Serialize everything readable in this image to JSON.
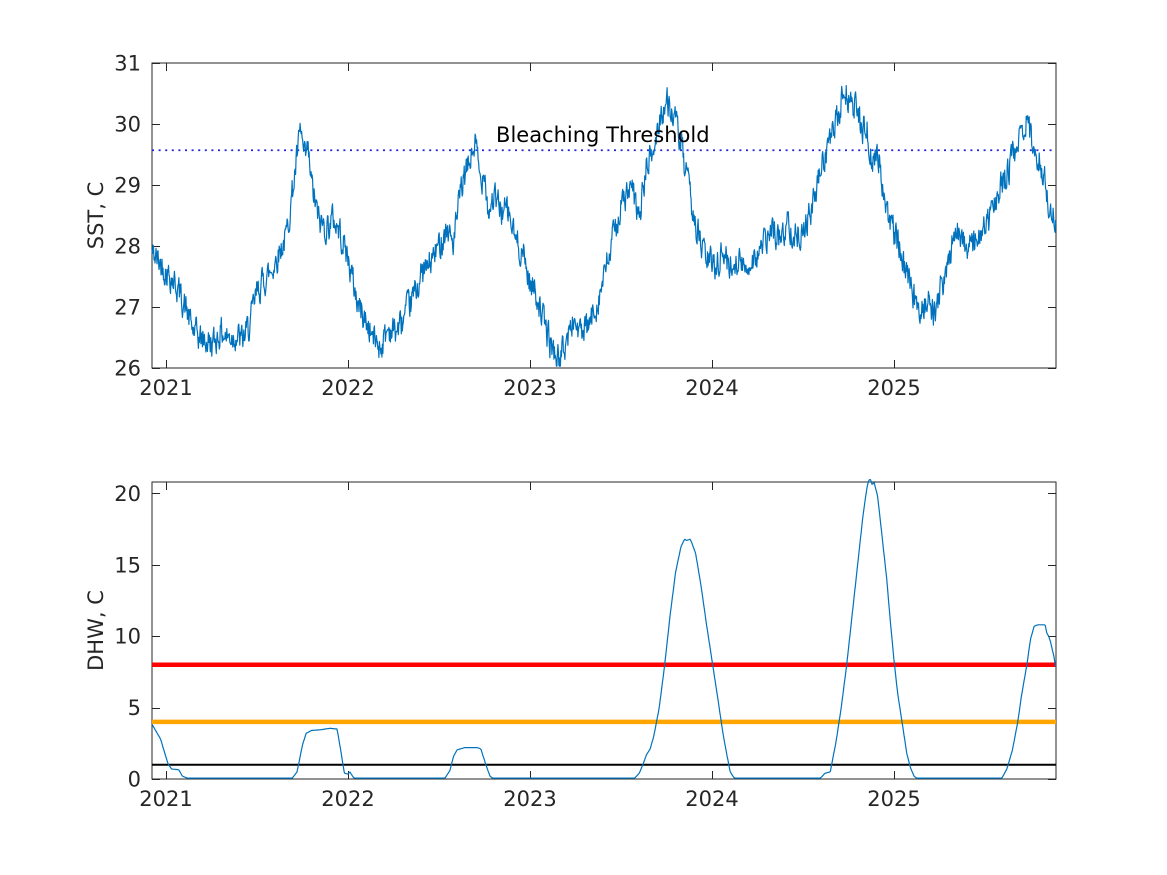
{
  "figure": {
    "background_color": "#FFFFFF",
    "axes_color": "#262626",
    "series_color": "#0072BD",
    "threshold_dotted_color": "#2222DD",
    "dhw_ref_red": "#FF0000",
    "dhw_ref_orange": "#FFA500",
    "dhw_ref_black": "#000000"
  },
  "chart_data": [
    {
      "type": "line",
      "title": "",
      "xlabel": "",
      "ylabel": "SST, C",
      "xlim": [
        2020.923,
        2025.89
      ],
      "ylim": [
        26,
        31
      ],
      "xticks": [
        2021,
        2022,
        2023,
        2024,
        2025
      ],
      "yticks": [
        26,
        27,
        28,
        29,
        30,
        31
      ],
      "grid": false,
      "legend": "none",
      "annotation": {
        "text": "Bleaching Threshold",
        "x": 2023.4,
        "y": 29.71
      },
      "threshold_line": {
        "label": "Bleaching Threshold",
        "value": 29.57,
        "style": "dotted",
        "color": "#2222DD",
        "width": 1.8
      },
      "series": [
        {
          "name": "SST",
          "color": "#0072BD",
          "width": 1.2,
          "noise_amp": 0.42,
          "noise_phi": 0.45,
          "noise_seed": 42,
          "sample_step": 0.00274,
          "clamp": [
            26.03,
            30.95
          ],
          "keypoints": [
            [
              2020.92,
              27.9
            ],
            [
              2020.96,
              27.75
            ],
            [
              2021.0,
              27.6
            ],
            [
              2021.05,
              27.4
            ],
            [
              2021.1,
              27.05
            ],
            [
              2021.15,
              26.6
            ],
            [
              2021.2,
              26.45
            ],
            [
              2021.26,
              26.4
            ],
            [
              2021.3,
              26.6
            ],
            [
              2021.34,
              26.5
            ],
            [
              2021.38,
              26.55
            ],
            [
              2021.42,
              26.45
            ],
            [
              2021.46,
              26.7
            ],
            [
              2021.5,
              27.25
            ],
            [
              2021.54,
              27.45
            ],
            [
              2021.58,
              27.6
            ],
            [
              2021.62,
              27.9
            ],
            [
              2021.66,
              28.15
            ],
            [
              2021.7,
              29.0
            ],
            [
              2021.74,
              29.9
            ],
            [
              2021.76,
              29.4
            ],
            [
              2021.78,
              29.55
            ],
            [
              2021.8,
              29.0
            ],
            [
              2021.84,
              28.4
            ],
            [
              2021.88,
              28.3
            ],
            [
              2021.92,
              28.45
            ],
            [
              2021.96,
              28.2
            ],
            [
              2022.0,
              27.8
            ],
            [
              2022.05,
              27.1
            ],
            [
              2022.1,
              26.75
            ],
            [
              2022.14,
              26.5
            ],
            [
              2022.18,
              26.35
            ],
            [
              2022.22,
              26.65
            ],
            [
              2022.26,
              26.6
            ],
            [
              2022.3,
              26.75
            ],
            [
              2022.35,
              27.1
            ],
            [
              2022.4,
              27.5
            ],
            [
              2022.45,
              27.7
            ],
            [
              2022.5,
              28.0
            ],
            [
              2022.54,
              28.3
            ],
            [
              2022.58,
              28.05
            ],
            [
              2022.62,
              28.9
            ],
            [
              2022.66,
              29.3
            ],
            [
              2022.7,
              29.7
            ],
            [
              2022.73,
              29.0
            ],
            [
              2022.75,
              29.35
            ],
            [
              2022.77,
              28.55
            ],
            [
              2022.8,
              28.8
            ],
            [
              2022.84,
              28.6
            ],
            [
              2022.88,
              28.55
            ],
            [
              2022.92,
              28.1
            ],
            [
              2022.96,
              27.9
            ],
            [
              2023.0,
              27.4
            ],
            [
              2023.04,
              27.2
            ],
            [
              2023.08,
              26.7
            ],
            [
              2023.12,
              26.35
            ],
            [
              2023.16,
              26.1
            ],
            [
              2023.2,
              26.45
            ],
            [
              2023.24,
              26.8
            ],
            [
              2023.28,
              26.55
            ],
            [
              2023.32,
              26.65
            ],
            [
              2023.36,
              27.0
            ],
            [
              2023.4,
              27.4
            ],
            [
              2023.44,
              27.9
            ],
            [
              2023.48,
              28.45
            ],
            [
              2023.52,
              28.8
            ],
            [
              2023.56,
              28.9
            ],
            [
              2023.6,
              28.45
            ],
            [
              2023.64,
              29.3
            ],
            [
              2023.68,
              29.55
            ],
            [
              2023.72,
              30.2
            ],
            [
              2023.76,
              30.35
            ],
            [
              2023.79,
              30.1
            ],
            [
              2023.82,
              29.8
            ],
            [
              2023.86,
              29.1
            ],
            [
              2023.9,
              28.5
            ],
            [
              2023.94,
              28.0
            ],
            [
              2023.98,
              27.75
            ],
            [
              2024.02,
              27.7
            ],
            [
              2024.06,
              27.9
            ],
            [
              2024.1,
              27.65
            ],
            [
              2024.14,
              27.8
            ],
            [
              2024.18,
              27.6
            ],
            [
              2024.22,
              27.8
            ],
            [
              2024.26,
              27.9
            ],
            [
              2024.3,
              28.1
            ],
            [
              2024.34,
              28.25
            ],
            [
              2024.38,
              28.1
            ],
            [
              2024.42,
              28.4
            ],
            [
              2024.46,
              28.15
            ],
            [
              2024.5,
              28.3
            ],
            [
              2024.54,
              28.5
            ],
            [
              2024.58,
              29.0
            ],
            [
              2024.62,
              29.5
            ],
            [
              2024.66,
              29.8
            ],
            [
              2024.7,
              30.2
            ],
            [
              2024.73,
              30.6
            ],
            [
              2024.76,
              30.3
            ],
            [
              2024.79,
              30.35
            ],
            [
              2024.82,
              29.9
            ],
            [
              2024.85,
              29.95
            ],
            [
              2024.88,
              29.3
            ],
            [
              2024.91,
              29.6
            ],
            [
              2024.94,
              28.9
            ],
            [
              2024.98,
              28.4
            ],
            [
              2025.02,
              28.1
            ],
            [
              2025.06,
              27.6
            ],
            [
              2025.1,
              27.2
            ],
            [
              2025.14,
              27.0
            ],
            [
              2025.18,
              27.1
            ],
            [
              2025.22,
              26.9
            ],
            [
              2025.26,
              27.3
            ],
            [
              2025.3,
              27.7
            ],
            [
              2025.34,
              28.4
            ],
            [
              2025.38,
              28.1
            ],
            [
              2025.42,
              27.95
            ],
            [
              2025.46,
              28.1
            ],
            [
              2025.5,
              28.3
            ],
            [
              2025.54,
              28.6
            ],
            [
              2025.58,
              28.9
            ],
            [
              2025.62,
              29.2
            ],
            [
              2025.66,
              29.5
            ],
            [
              2025.7,
              29.9
            ],
            [
              2025.73,
              30.1
            ],
            [
              2025.76,
              29.6
            ],
            [
              2025.79,
              29.5
            ],
            [
              2025.82,
              29.2
            ],
            [
              2025.85,
              28.7
            ],
            [
              2025.87,
              28.55
            ],
            [
              2025.89,
              28.4
            ]
          ]
        }
      ]
    },
    {
      "type": "line",
      "title": "",
      "xlabel": "",
      "ylabel": "DHW, C",
      "xlim": [
        2020.923,
        2025.89
      ],
      "ylim": [
        0,
        20.8
      ],
      "xticks": [
        2021,
        2022,
        2023,
        2024,
        2025
      ],
      "yticks": [
        0,
        5,
        10,
        15,
        20
      ],
      "grid": false,
      "legend": "none",
      "ref_lines": [
        {
          "value": 8,
          "color": "#FF0000",
          "width": 4.5
        },
        {
          "value": 4,
          "color": "#FFA500",
          "width": 4.5
        },
        {
          "value": 1,
          "color": "#000000",
          "width": 2
        }
      ],
      "series": [
        {
          "name": "DHW",
          "color": "#0072BD",
          "width": 1.2,
          "sample_step": 0.004,
          "floor": 0.06,
          "keypoints": [
            [
              2020.92,
              3.9
            ],
            [
              2020.97,
              2.8
            ],
            [
              2021.01,
              1.1
            ],
            [
              2021.03,
              0.7
            ],
            [
              2021.07,
              0.65
            ],
            [
              2021.09,
              0.2
            ],
            [
              2021.12,
              0.05
            ],
            [
              2021.14,
              0
            ],
            [
              2021.69,
              0
            ],
            [
              2021.72,
              0.5
            ],
            [
              2021.75,
              2.4
            ],
            [
              2021.77,
              3.2
            ],
            [
              2021.8,
              3.4
            ],
            [
              2021.85,
              3.45
            ],
            [
              2021.9,
              3.55
            ],
            [
              2021.94,
              3.5
            ],
            [
              2021.96,
              2.0
            ],
            [
              2021.98,
              0.4
            ],
            [
              2022.0,
              0.35
            ],
            [
              2022.01,
              0.5
            ],
            [
              2022.03,
              0.1
            ],
            [
              2022.05,
              0
            ],
            [
              2022.53,
              0
            ],
            [
              2022.56,
              0.6
            ],
            [
              2022.58,
              1.6
            ],
            [
              2022.6,
              2.05
            ],
            [
              2022.63,
              2.15
            ],
            [
              2022.64,
              2.2
            ],
            [
              2022.71,
              2.2
            ],
            [
              2022.73,
              2.1
            ],
            [
              2022.76,
              0.9
            ],
            [
              2022.78,
              0.2
            ],
            [
              2022.8,
              0
            ],
            [
              2023.57,
              0
            ],
            [
              2023.6,
              0.4
            ],
            [
              2023.62,
              1.0
            ],
            [
              2023.64,
              1.7
            ],
            [
              2023.66,
              2.1
            ],
            [
              2023.68,
              3.0
            ],
            [
              2023.71,
              5.0
            ],
            [
              2023.74,
              8.0
            ],
            [
              2023.77,
              11.5
            ],
            [
              2023.8,
              14.5
            ],
            [
              2023.83,
              16.3
            ],
            [
              2023.85,
              16.8
            ],
            [
              2023.86,
              16.7
            ],
            [
              2023.88,
              16.8
            ],
            [
              2023.89,
              16.5
            ],
            [
              2023.91,
              15.8
            ],
            [
              2023.94,
              13.5
            ],
            [
              2023.97,
              10.8
            ],
            [
              2024.0,
              8.3
            ],
            [
              2024.03,
              5.8
            ],
            [
              2024.06,
              3.2
            ],
            [
              2024.08,
              1.8
            ],
            [
              2024.1,
              0.5
            ],
            [
              2024.12,
              0.1
            ],
            [
              2024.14,
              0
            ],
            [
              2024.59,
              0
            ],
            [
              2024.61,
              0.25
            ],
            [
              2024.62,
              0.4
            ],
            [
              2024.65,
              0.5
            ],
            [
              2024.66,
              1.2
            ],
            [
              2024.68,
              2.5
            ],
            [
              2024.71,
              5.0
            ],
            [
              2024.74,
              8.0
            ],
            [
              2024.77,
              11.5
            ],
            [
              2024.8,
              15.0
            ],
            [
              2024.83,
              18.5
            ],
            [
              2024.85,
              20.3
            ],
            [
              2024.86,
              20.9
            ],
            [
              2024.87,
              21.0
            ],
            [
              2024.88,
              20.6
            ],
            [
              2024.89,
              20.8
            ],
            [
              2024.91,
              19.8
            ],
            [
              2024.93,
              17.5
            ],
            [
              2024.96,
              14.0
            ],
            [
              2024.98,
              11.0
            ],
            [
              2025.0,
              8.3
            ],
            [
              2025.02,
              6.0
            ],
            [
              2025.05,
              3.5
            ],
            [
              2025.07,
              1.8
            ],
            [
              2025.09,
              0.8
            ],
            [
              2025.11,
              0.2
            ],
            [
              2025.13,
              0
            ],
            [
              2025.59,
              0
            ],
            [
              2025.62,
              0.7
            ],
            [
              2025.65,
              2.0
            ],
            [
              2025.68,
              4.0
            ],
            [
              2025.7,
              5.8
            ],
            [
              2025.73,
              8.0
            ],
            [
              2025.75,
              9.8
            ],
            [
              2025.77,
              10.7
            ],
            [
              2025.79,
              10.8
            ],
            [
              2025.83,
              10.8
            ],
            [
              2025.84,
              10.2
            ],
            [
              2025.85,
              10.0
            ],
            [
              2025.86,
              9.6
            ],
            [
              2025.88,
              8.5
            ],
            [
              2025.89,
              7.6
            ]
          ]
        }
      ]
    }
  ]
}
